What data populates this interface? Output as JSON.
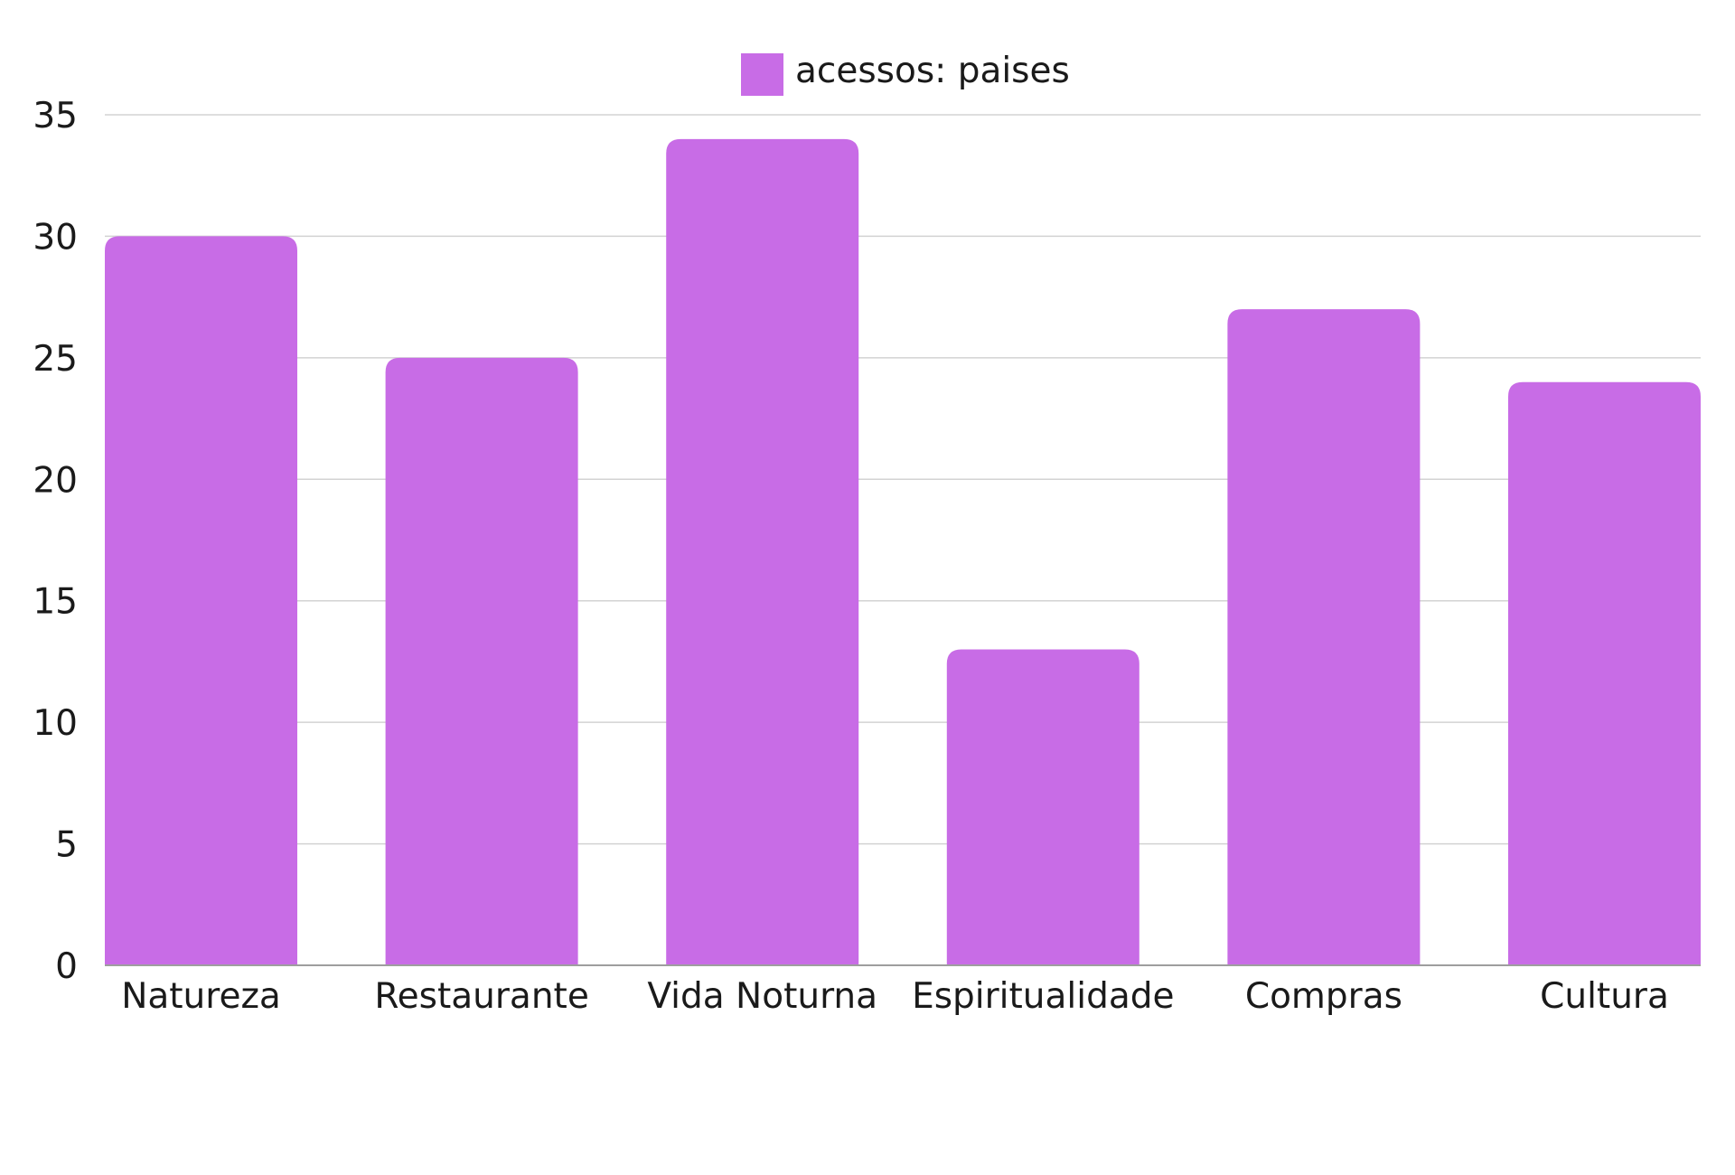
{
  "chart_data": {
    "type": "bar",
    "title": "",
    "xlabel": "",
    "ylabel": "",
    "categories": [
      "Natureza",
      "Restaurante",
      "Vida Noturna",
      "Espiritualidade",
      "Compras",
      "Cultura"
    ],
    "series": [
      {
        "name": "acessos: paises",
        "values": [
          30,
          25,
          34,
          13,
          27,
          24
        ],
        "color": "#c86ce6"
      }
    ],
    "ylim": [
      0,
      35
    ],
    "yticks": [
      0,
      5,
      10,
      15,
      20,
      25,
      30,
      35
    ],
    "grid": true,
    "legend_position": "top-center"
  }
}
